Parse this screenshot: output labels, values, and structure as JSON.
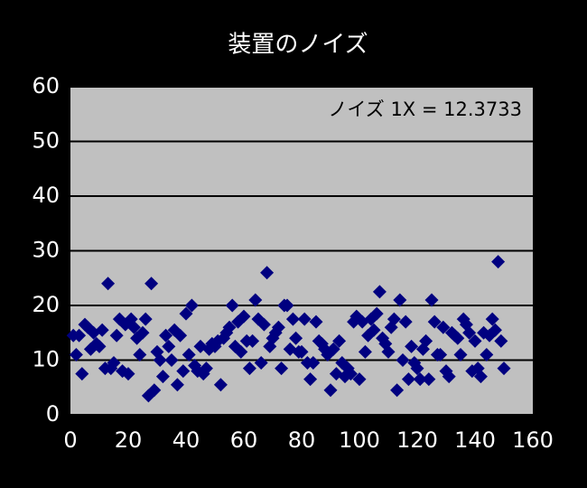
{
  "chart_data": {
    "type": "scatter",
    "title": "装置のノイズ",
    "annotation": "ノイズ 1X = 12.3733",
    "color": "#000080",
    "background": "#c0c0c0",
    "grid": true,
    "xlim": [
      0,
      160
    ],
    "xticks": [
      0,
      20,
      40,
      60,
      80,
      100,
      120,
      140,
      160
    ],
    "ylim": [
      0,
      60
    ],
    "yticks": [
      0,
      10,
      20,
      30,
      40,
      50,
      60
    ],
    "series": [
      {
        "name": null,
        "color": "#000080",
        "x": [
          1,
          2,
          3,
          4,
          5,
          6,
          7,
          8,
          9,
          10,
          11,
          12,
          13,
          14,
          15,
          16,
          17,
          18,
          19,
          20,
          21,
          22,
          23,
          24,
          25,
          26,
          27,
          28,
          29,
          30,
          31,
          32,
          33,
          34,
          35,
          36,
          37,
          38,
          39,
          40,
          41,
          42,
          43,
          44,
          45,
          46,
          47,
          48,
          49,
          50,
          51,
          52,
          53,
          54,
          55,
          56,
          57,
          58,
          59,
          60,
          61,
          62,
          63,
          64,
          65,
          66,
          67,
          68,
          69,
          70,
          71,
          72,
          73,
          74,
          75,
          76,
          77,
          78,
          79,
          80,
          81,
          82,
          83,
          84,
          85,
          86,
          87,
          88,
          89,
          90,
          91,
          92,
          93,
          94,
          95,
          96,
          97,
          98,
          99,
          100,
          101,
          102,
          103,
          104,
          105,
          106,
          107,
          108,
          109,
          110,
          111,
          112,
          113,
          114,
          115,
          116,
          117,
          118,
          119,
          120,
          121,
          122,
          123,
          124,
          125,
          126,
          127,
          128,
          129,
          130,
          131,
          132,
          133,
          134,
          135,
          136,
          137,
          138,
          139,
          140,
          141,
          142,
          143,
          144,
          145,
          146,
          147,
          148,
          149,
          150
        ],
        "values": [
          14.5,
          11,
          14.5,
          7.5,
          16.5,
          16,
          12,
          15,
          13,
          12.5,
          15.5,
          8.5,
          24,
          8.5,
          9.5,
          14.5,
          17.5,
          8,
          16.5,
          7.5,
          17.5,
          16,
          14,
          11,
          15,
          17.5,
          3.5,
          24,
          4.5,
          11.5,
          10,
          7,
          14.5,
          12.5,
          10,
          15.5,
          5.5,
          14.5,
          8,
          18.5,
          11,
          20,
          9,
          8,
          12.5,
          7.5,
          8.5,
          12,
          13,
          12.5,
          13.5,
          5.5,
          14,
          15,
          16,
          20,
          12.5,
          17,
          11.5,
          18,
          13.5,
          8.5,
          13.5,
          21,
          17.5,
          9.5,
          16.5,
          26,
          12.5,
          14,
          15,
          16,
          8.5,
          20,
          20,
          12,
          17.5,
          14,
          11.5,
          11.5,
          17.5,
          9.5,
          6.5,
          9.5,
          17,
          13.5,
          13,
          12,
          11,
          4.5,
          12,
          7.5,
          13.5,
          9.5,
          7,
          8.5,
          7.5,
          17,
          18,
          6.5,
          17,
          11.5,
          14.5,
          17.5,
          15.5,
          18.5,
          22.5,
          14,
          13,
          11.5,
          16,
          17.5,
          4.5,
          21,
          10,
          17,
          6.5,
          12.5,
          9.5,
          8.5,
          6.5,
          12,
          13.5,
          6.5,
          21,
          17,
          11,
          11,
          16,
          8,
          7,
          15,
          14.5,
          14,
          11,
          17.5,
          16.5,
          15,
          8,
          13.5,
          8.5,
          7,
          15,
          11,
          14.5,
          17.5,
          15.5,
          28,
          13.5,
          8.5
        ]
      }
    ]
  }
}
